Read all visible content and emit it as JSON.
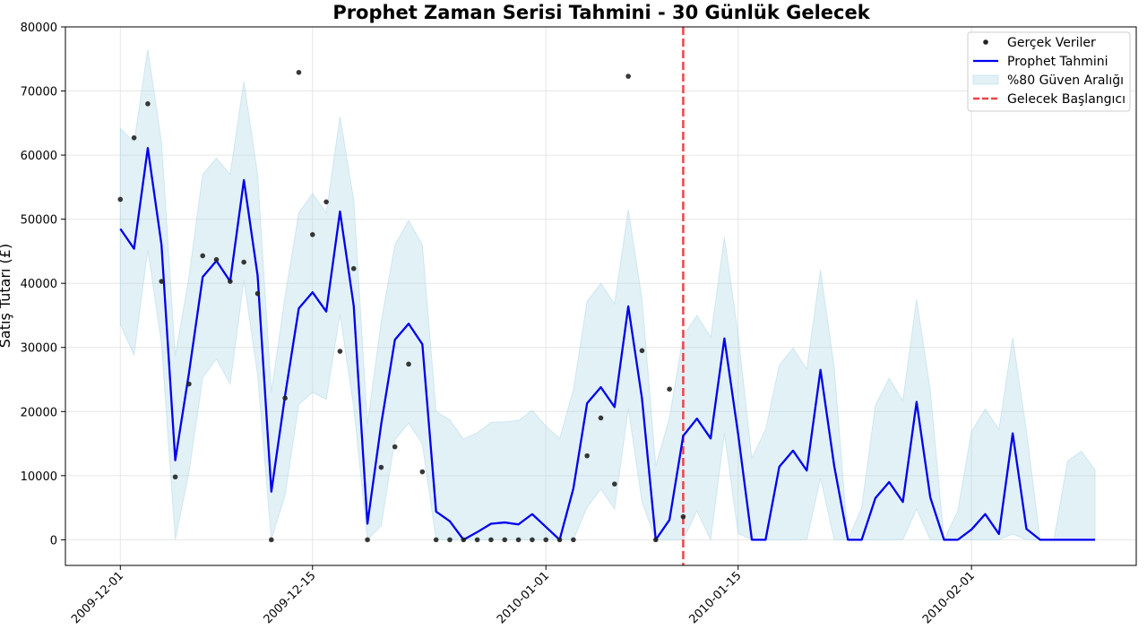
{
  "chart_data": {
    "type": "line",
    "title": "Prophet Zaman Serisi Tahmini - 30 Günlük Gelecek",
    "xlabel": "",
    "ylabel": "Satış Tutarı (£)",
    "x_start": "2009-12-01",
    "x_end": "2010-02-11",
    "xlim": [
      "2009-11-27",
      "2010-02-13"
    ],
    "ylim": [
      -4000,
      80000
    ],
    "yticks": [
      0,
      10000,
      20000,
      30000,
      40000,
      50000,
      60000,
      70000,
      80000
    ],
    "xticks": [
      "2009-12-01",
      "2009-12-15",
      "2010-01-01",
      "2010-01-15",
      "2010-02-01"
    ],
    "grid": true,
    "legend_position": "top-right",
    "future_start": "2010-01-11",
    "colors": {
      "actual": "#222222",
      "forecast": "#0000ee",
      "interval": "#add8e6",
      "future_line": "#ee4444"
    },
    "series": [
      {
        "name": "Gerçek Veriler",
        "kind": "scatter",
        "x": [
          "2009-12-01",
          "2009-12-02",
          "2009-12-03",
          "2009-12-04",
          "2009-12-05",
          "2009-12-06",
          "2009-12-07",
          "2009-12-08",
          "2009-12-09",
          "2009-12-10",
          "2009-12-11",
          "2009-12-12",
          "2009-12-13",
          "2009-12-14",
          "2009-12-15",
          "2009-12-16",
          "2009-12-17",
          "2009-12-18",
          "2009-12-19",
          "2009-12-20",
          "2009-12-21",
          "2009-12-22",
          "2009-12-23",
          "2009-12-24",
          "2009-12-25",
          "2009-12-26",
          "2009-12-27",
          "2009-12-28",
          "2009-12-29",
          "2009-12-30",
          "2009-12-31",
          "2010-01-01",
          "2010-01-02",
          "2010-01-03",
          "2010-01-04",
          "2010-01-05",
          "2010-01-06",
          "2010-01-07",
          "2010-01-08",
          "2010-01-09",
          "2010-01-10",
          "2010-01-11"
        ],
        "values": [
          53100,
          62700,
          68000,
          40300,
          9800,
          24300,
          44300,
          43700,
          40300,
          43300,
          38400,
          0,
          22100,
          72900,
          47600,
          52700,
          29400,
          42300,
          0,
          11300,
          14500,
          27400,
          10600,
          0,
          0,
          0,
          0,
          0,
          0,
          0,
          0,
          0,
          0,
          0,
          13100,
          19000,
          8700,
          72300,
          29500,
          0,
          23500,
          3600
        ]
      },
      {
        "name": "Prophet Tahmini",
        "kind": "line",
        "x_start": "2009-12-01",
        "values": [
          48500,
          45400,
          61100,
          46000,
          12400,
          26000,
          41000,
          43500,
          40300,
          56100,
          41200,
          7500,
          22500,
          36100,
          38600,
          35600,
          51200,
          36500,
          2500,
          18000,
          31200,
          33700,
          30500,
          4400,
          2900,
          0,
          1200,
          2500,
          2700,
          2400,
          4000,
          2000,
          0,
          8000,
          21300,
          23800,
          20700,
          36400,
          22000,
          0,
          3100,
          16200,
          18900,
          15800,
          31400,
          16500,
          0,
          0,
          11400,
          13900,
          10800,
          26500,
          11500,
          0,
          0,
          6500,
          9000,
          5900,
          21500,
          6600,
          0,
          0,
          1600,
          4000,
          900,
          16600,
          1700,
          0,
          0,
          0,
          0,
          0
        ]
      },
      {
        "name": "%80 Güven Aralığı",
        "kind": "band",
        "x_start": "2009-12-01",
        "upper": [
          64200,
          62000,
          76500,
          62000,
          28700,
          41000,
          57000,
          59500,
          57000,
          71500,
          57000,
          23000,
          38000,
          51000,
          54000,
          51000,
          66000,
          53000,
          18000,
          34000,
          46000,
          49800,
          46000,
          20000,
          18700,
          15700,
          16700,
          18300,
          18400,
          18600,
          20200,
          17700,
          15800,
          23400,
          37200,
          40000,
          36800,
          51500,
          37500,
          11500,
          19000,
          31800,
          35000,
          31600,
          47200,
          32100,
          12700,
          17200,
          27200,
          29900,
          26600,
          42100,
          26900,
          0,
          5000,
          21000,
          25200,
          21700,
          37500,
          23300,
          0,
          4500,
          16900,
          20400,
          17200,
          31500,
          17000,
          0,
          0,
          12300,
          13800,
          10900
        ],
        "lower": [
          33600,
          28800,
          45200,
          30600,
          0,
          10500,
          25300,
          28200,
          24300,
          40500,
          25700,
          0,
          7000,
          21100,
          23000,
          21900,
          35200,
          20700,
          0,
          2200,
          15600,
          18200,
          14900,
          0,
          0,
          0,
          0,
          0,
          0,
          0,
          0,
          0,
          0,
          0,
          5100,
          7900,
          4800,
          20500,
          5900,
          0,
          0,
          0,
          4500,
          0,
          16600,
          1000,
          0,
          0,
          0,
          0,
          0,
          9600,
          0,
          0,
          0,
          0,
          0,
          0,
          4800,
          0,
          0,
          0,
          0,
          0,
          0,
          900,
          0,
          0,
          0,
          0,
          0,
          0
        ]
      },
      {
        "name": "Gelecek Başlangıcı",
        "kind": "vline",
        "x": "2010-01-11"
      }
    ]
  }
}
